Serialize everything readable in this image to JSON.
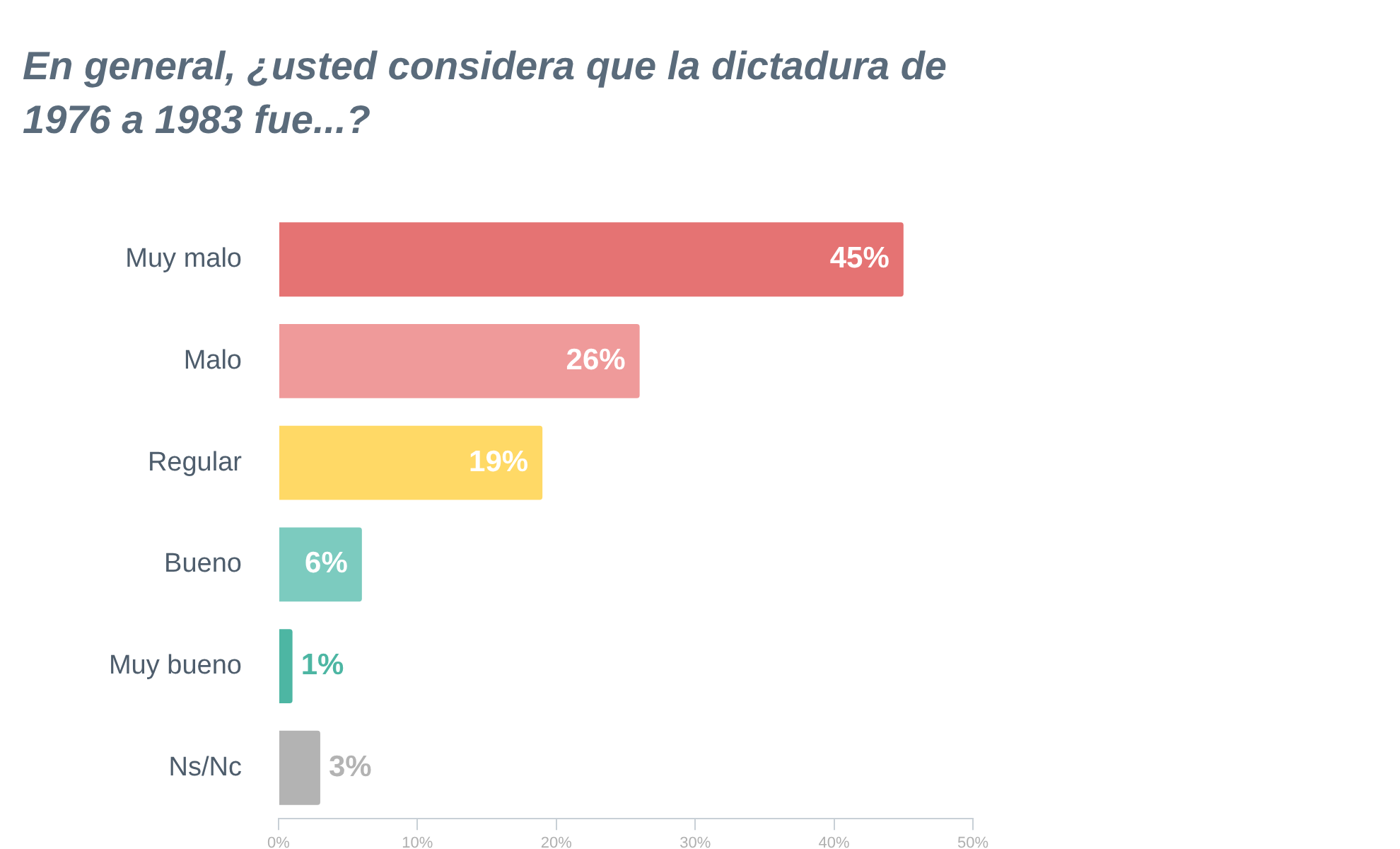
{
  "chart_data": {
    "type": "bar",
    "orientation": "horizontal",
    "title": "En general, ¿usted considera que la dictadura de 1976 a 1983 fue...?",
    "categories": [
      "Muy malo",
      "Malo",
      "Regular",
      "Bueno",
      "Muy bueno",
      "Ns/Nc"
    ],
    "values": [
      45,
      26,
      19,
      6,
      1,
      3
    ],
    "value_labels": [
      "45%",
      "26%",
      "19%",
      "6%",
      "1%",
      "3%"
    ],
    "colors": [
      "#e57373",
      "#ef9a9a",
      "#ffd966",
      "#7ccbbf",
      "#4db6a3",
      "#b3b3b3"
    ],
    "xlim": [
      0,
      50
    ],
    "xticks": [
      {
        "value": 0,
        "label": "0%"
      },
      {
        "value": 10,
        "label": "10%"
      },
      {
        "value": 20,
        "label": "20%"
      },
      {
        "value": 30,
        "label": "30%"
      },
      {
        "value": 40,
        "label": "40%"
      },
      {
        "value": 50,
        "label": "50%"
      }
    ]
  }
}
